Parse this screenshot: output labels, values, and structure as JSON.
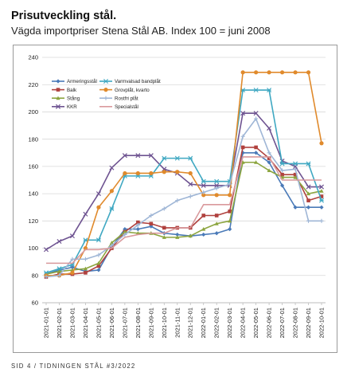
{
  "header": {
    "title": "Prisutveckling stål.",
    "subtitle": "Vägda importpriser Stena Stål AB. Index 100 = juni 2008"
  },
  "footer": {
    "text": "SID 4 / TIDNINGEN STÅL #3/2022"
  },
  "chart_data": {
    "type": "line",
    "ylim": [
      60,
      240
    ],
    "yticks": [
      60,
      80,
      100,
      120,
      140,
      160,
      180,
      200,
      220,
      240
    ],
    "grid": true,
    "legend_position": "top-left",
    "categories": [
      "2021-01-01",
      "2021-02-01",
      "2021-03-01",
      "2021-04-01",
      "2021-05-01",
      "2021-06-01",
      "2021-07-01",
      "2021-08-01",
      "2021-09-01",
      "2021-10-01",
      "2021-11-01",
      "2021-12-01",
      "2022-01-01",
      "2022-02-01",
      "2022-03-01",
      "2022-04-01",
      "2022-05-01",
      "2022-06-01",
      "2022-07-01",
      "2022-08-01",
      "2022-09-01",
      "2022-10-01"
    ],
    "series": [
      {
        "name": "Armeringsstål",
        "color": "#4a7ab8",
        "marker": "diamond",
        "values": [
          81,
          84,
          86,
          83,
          84,
          101,
          114,
          114,
          116,
          111,
          110,
          109,
          110,
          111,
          114,
          170,
          170,
          163,
          146,
          130,
          130,
          130
        ]
      },
      {
        "name": "Balk",
        "color": "#b0413e",
        "marker": "square",
        "values": [
          79,
          81,
          81,
          82,
          87,
          100,
          112,
          119,
          118,
          115,
          115,
          115,
          124,
          124,
          127,
          174,
          174,
          166,
          154,
          154,
          135,
          138
        ]
      },
      {
        "name": "Stång",
        "color": "#8ca53f",
        "marker": "triangle",
        "values": [
          81,
          83,
          84,
          85,
          89,
          104,
          112,
          111,
          111,
          108,
          108,
          109,
          114,
          118,
          120,
          163,
          163,
          157,
          152,
          152,
          140,
          142
        ]
      },
      {
        "name": "KKR",
        "color": "#6e5391",
        "marker": "x",
        "values": [
          99,
          105,
          109,
          125,
          140,
          159,
          168,
          168,
          168,
          158,
          155,
          147,
          146,
          146,
          146,
          199,
          199,
          188,
          164,
          160,
          145,
          145
        ]
      },
      {
        "name": "Varmvalsad bandplåt",
        "color": "#3fa8c2",
        "marker": "star",
        "values": [
          82,
          85,
          88,
          106,
          106,
          129,
          153,
          153,
          153,
          166,
          166,
          166,
          149,
          149,
          149,
          216,
          216,
          216,
          162,
          162,
          162,
          135
        ]
      },
      {
        "name": "Grovplåt, kvarto",
        "color": "#e08a2c",
        "marker": "circle",
        "values": [
          80,
          80,
          82,
          100,
          130,
          142,
          155,
          155,
          155,
          156,
          156,
          155,
          139,
          139,
          139,
          229,
          229,
          229,
          229,
          229,
          229,
          177
        ]
      },
      {
        "name": "Rostfri plåt",
        "color": "#9fb6d6",
        "marker": "plus",
        "values": [
          79,
          80,
          92,
          92,
          95,
          102,
          110,
          117,
          124,
          129,
          135,
          138,
          141,
          144,
          147,
          182,
          195,
          170,
          157,
          158,
          120,
          120
        ]
      },
      {
        "name": "Specialstål",
        "color": "#d9999c",
        "marker": "none",
        "values": [
          89,
          89,
          89,
          99,
          99,
          100,
          108,
          110,
          111,
          111,
          115,
          115,
          132,
          132,
          132,
          167,
          167,
          167,
          150,
          150,
          150,
          150
        ]
      }
    ]
  }
}
